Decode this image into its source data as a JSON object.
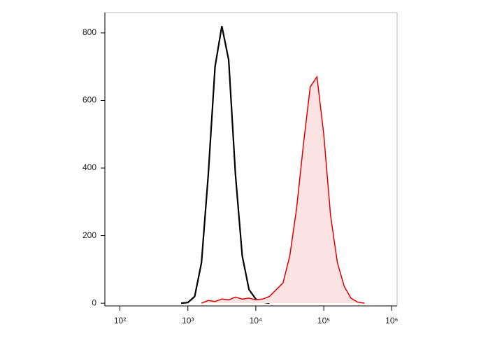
{
  "chart_data": {
    "type": "histogram-line",
    "xscale": "log",
    "xlim": [
      60,
      1200000
    ],
    "ylim": [
      -8,
      860
    ],
    "xticks": [
      {
        "value": 100,
        "label": "10²"
      },
      {
        "value": 1000,
        "label": "10³"
      },
      {
        "value": 10000,
        "label": "10⁴"
      },
      {
        "value": 100000,
        "label": "10⁵"
      },
      {
        "value": 1000000,
        "label": "10⁶"
      }
    ],
    "yticks": [
      0,
      200,
      400,
      600,
      800
    ],
    "series": [
      {
        "color": "#000000",
        "fill": false,
        "x": [
          794,
          1000,
          1259,
          1585,
          1995,
          2512,
          3162,
          3981,
          5012,
          6310,
          7943,
          10000,
          12589,
          15849
        ],
        "values": [
          0,
          2,
          20,
          120,
          380,
          700,
          820,
          720,
          380,
          140,
          40,
          12,
          3,
          0
        ]
      },
      {
        "color": "#e00000",
        "fill": true,
        "fill_color": "#fbe3e3",
        "x": [
          1585,
          1995,
          2512,
          3162,
          3981,
          5012,
          6310,
          7943,
          10000,
          12589,
          15849,
          19953,
          25119,
          31623,
          39811,
          50119,
          63096,
          79433,
          100000,
          125893,
          158489,
          199526,
          251189,
          316228,
          398107
        ],
        "values": [
          0,
          8,
          5,
          12,
          10,
          18,
          12,
          15,
          10,
          12,
          20,
          40,
          60,
          140,
          280,
          470,
          640,
          670,
          500,
          260,
          120,
          50,
          15,
          3,
          0
        ]
      }
    ]
  }
}
